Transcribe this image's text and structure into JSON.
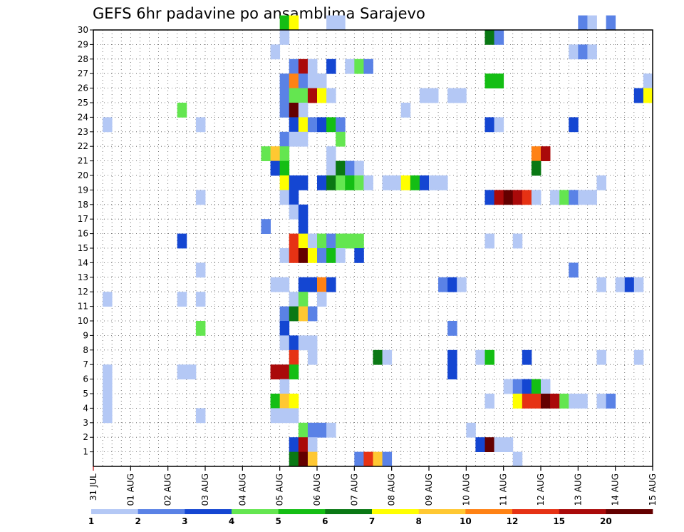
{
  "chart_data": {
    "type": "heatmap",
    "title": "GEFS 6hr padavine po ansamblima Sarajevo",
    "xlabel": "",
    "ylabel": "",
    "x_tick_labels": [
      "31 JUL",
      "01 AUG",
      "02 AUG",
      "03 AUG",
      "04 AUG",
      "05 AUG",
      "06 AUG",
      "07 AUG",
      "08 AUG",
      "09 AUG",
      "10 AUG",
      "11 AUG",
      "12 AUG",
      "13 AUG",
      "14 AUG",
      "15 AUG"
    ],
    "y_tick_labels": [
      "1",
      "2",
      "3",
      "4",
      "5",
      "6",
      "7",
      "8",
      "9",
      "10",
      "11",
      "12",
      "13",
      "14",
      "15",
      "16",
      "17",
      "18",
      "19",
      "20",
      "21",
      "22",
      "23",
      "24",
      "25",
      "26",
      "27",
      "28",
      "29",
      "30"
    ],
    "x_range": [
      0,
      60
    ],
    "y_range": [
      0,
      30
    ],
    "grid": true,
    "legend_position": "bottom",
    "legend_thresholds": [
      "1",
      "2",
      "3",
      "4",
      "5",
      "6",
      "7",
      "8",
      "10",
      "12",
      "15",
      "20"
    ],
    "colors": [
      "#b4c8f5",
      "#5a82e6",
      "#1446d2",
      "#64e650",
      "#14be14",
      "#0a7814",
      "#ffff00",
      "#ffc832",
      "#ff8214",
      "#e63214",
      "#aa0a0a",
      "#640000"
    ],
    "cells": [
      [
        20,
        30,
        4
      ],
      [
        21,
        30,
        6
      ],
      [
        25,
        30,
        0
      ],
      [
        26,
        30,
        0
      ],
      [
        52,
        30,
        1
      ],
      [
        53,
        30,
        0
      ],
      [
        55,
        30,
        1
      ],
      [
        20,
        29,
        0
      ],
      [
        42,
        29,
        5
      ],
      [
        43,
        29,
        1
      ],
      [
        19,
        28,
        0
      ],
      [
        51,
        28,
        0
      ],
      [
        52,
        28,
        1
      ],
      [
        53,
        28,
        0
      ],
      [
        21,
        27,
        1
      ],
      [
        22,
        27,
        10
      ],
      [
        23,
        27,
        0
      ],
      [
        25,
        27,
        2
      ],
      [
        27,
        27,
        0
      ],
      [
        28,
        27,
        3
      ],
      [
        29,
        27,
        1
      ],
      [
        20,
        26,
        1
      ],
      [
        21,
        26,
        8
      ],
      [
        22,
        26,
        1
      ],
      [
        23,
        26,
        0
      ],
      [
        24,
        26,
        0
      ],
      [
        42,
        26,
        4
      ],
      [
        43,
        26,
        4
      ],
      [
        59,
        26,
        0
      ],
      [
        20,
        25,
        1
      ],
      [
        21,
        25,
        3
      ],
      [
        22,
        25,
        3
      ],
      [
        23,
        25,
        10
      ],
      [
        24,
        25,
        6
      ],
      [
        25,
        25,
        0
      ],
      [
        35,
        25,
        0
      ],
      [
        36,
        25,
        0
      ],
      [
        38,
        25,
        0
      ],
      [
        39,
        25,
        0
      ],
      [
        58,
        25,
        2
      ],
      [
        59,
        25,
        6
      ],
      [
        9,
        24,
        3
      ],
      [
        20,
        24,
        1
      ],
      [
        21,
        24,
        11
      ],
      [
        22,
        24,
        0
      ],
      [
        33,
        24,
        0
      ],
      [
        1,
        23,
        0
      ],
      [
        11,
        23,
        0
      ],
      [
        21,
        23,
        2
      ],
      [
        22,
        23,
        6
      ],
      [
        23,
        23,
        1
      ],
      [
        24,
        23,
        2
      ],
      [
        25,
        23,
        4
      ],
      [
        26,
        23,
        1
      ],
      [
        42,
        23,
        2
      ],
      [
        43,
        23,
        0
      ],
      [
        51,
        23,
        2
      ],
      [
        20,
        22,
        1
      ],
      [
        21,
        22,
        0
      ],
      [
        22,
        22,
        0
      ],
      [
        26,
        22,
        3
      ],
      [
        18,
        21,
        3
      ],
      [
        19,
        21,
        7
      ],
      [
        20,
        21,
        3
      ],
      [
        25,
        21,
        0
      ],
      [
        47,
        21,
        8
      ],
      [
        48,
        21,
        10
      ],
      [
        19,
        20,
        2
      ],
      [
        20,
        20,
        4
      ],
      [
        25,
        20,
        0
      ],
      [
        26,
        20,
        5
      ],
      [
        27,
        20,
        1
      ],
      [
        28,
        20,
        0
      ],
      [
        47,
        20,
        5
      ],
      [
        20,
        19,
        6
      ],
      [
        21,
        19,
        2
      ],
      [
        22,
        19,
        2
      ],
      [
        24,
        19,
        2
      ],
      [
        25,
        19,
        5
      ],
      [
        26,
        19,
        3
      ],
      [
        27,
        19,
        4
      ],
      [
        28,
        19,
        3
      ],
      [
        29,
        19,
        0
      ],
      [
        31,
        19,
        0
      ],
      [
        32,
        19,
        0
      ],
      [
        33,
        19,
        6
      ],
      [
        34,
        19,
        4
      ],
      [
        35,
        19,
        2
      ],
      [
        36,
        19,
        0
      ],
      [
        37,
        19,
        0
      ],
      [
        54,
        19,
        0
      ],
      [
        11,
        18,
        0
      ],
      [
        20,
        18,
        0
      ],
      [
        21,
        18,
        2
      ],
      [
        42,
        18,
        2
      ],
      [
        43,
        18,
        10
      ],
      [
        44,
        18,
        11
      ],
      [
        45,
        18,
        10
      ],
      [
        46,
        18,
        9
      ],
      [
        47,
        18,
        0
      ],
      [
        49,
        18,
        0
      ],
      [
        50,
        18,
        3
      ],
      [
        51,
        18,
        1
      ],
      [
        52,
        18,
        0
      ],
      [
        53,
        18,
        0
      ],
      [
        21,
        17,
        0
      ],
      [
        22,
        17,
        2
      ],
      [
        18,
        16,
        1
      ],
      [
        22,
        16,
        2
      ],
      [
        9,
        15,
        2
      ],
      [
        21,
        15,
        9
      ],
      [
        22,
        15,
        6
      ],
      [
        23,
        15,
        0
      ],
      [
        24,
        15,
        3
      ],
      [
        25,
        15,
        1
      ],
      [
        26,
        15,
        3
      ],
      [
        27,
        15,
        3
      ],
      [
        28,
        15,
        3
      ],
      [
        42,
        15,
        0
      ],
      [
        45,
        15,
        0
      ],
      [
        20,
        14,
        0
      ],
      [
        21,
        14,
        9
      ],
      [
        22,
        14,
        11
      ],
      [
        23,
        14,
        6
      ],
      [
        24,
        14,
        1
      ],
      [
        25,
        14,
        4
      ],
      [
        26,
        14,
        0
      ],
      [
        28,
        14,
        2
      ],
      [
        11,
        13,
        0
      ],
      [
        51,
        13,
        1
      ],
      [
        19,
        12,
        0
      ],
      [
        20,
        12,
        0
      ],
      [
        22,
        12,
        2
      ],
      [
        23,
        12,
        2
      ],
      [
        24,
        12,
        8
      ],
      [
        25,
        12,
        2
      ],
      [
        37,
        12,
        1
      ],
      [
        38,
        12,
        2
      ],
      [
        39,
        12,
        0
      ],
      [
        54,
        12,
        0
      ],
      [
        56,
        12,
        0
      ],
      [
        57,
        12,
        2
      ],
      [
        58,
        12,
        0
      ],
      [
        1,
        11,
        0
      ],
      [
        9,
        11,
        0
      ],
      [
        11,
        11,
        0
      ],
      [
        21,
        11,
        0
      ],
      [
        22,
        11,
        3
      ],
      [
        24,
        11,
        0
      ],
      [
        20,
        10,
        1
      ],
      [
        21,
        10,
        5
      ],
      [
        22,
        10,
        7
      ],
      [
        23,
        10,
        1
      ],
      [
        11,
        9,
        3
      ],
      [
        20,
        9,
        2
      ],
      [
        38,
        9,
        1
      ],
      [
        20,
        8,
        0
      ],
      [
        21,
        8,
        2
      ],
      [
        22,
        8,
        0
      ],
      [
        23,
        8,
        0
      ],
      [
        21,
        7,
        9
      ],
      [
        23,
        7,
        0
      ],
      [
        30,
        7,
        5
      ],
      [
        31,
        7,
        0
      ],
      [
        38,
        7,
        2
      ],
      [
        41,
        7,
        0
      ],
      [
        42,
        7,
        4
      ],
      [
        46,
        7,
        2
      ],
      [
        54,
        7,
        0
      ],
      [
        58,
        7,
        0
      ],
      [
        1,
        6,
        0
      ],
      [
        9,
        6,
        0
      ],
      [
        10,
        6,
        0
      ],
      [
        19,
        6,
        10
      ],
      [
        20,
        6,
        10
      ],
      [
        21,
        6,
        4
      ],
      [
        38,
        6,
        2
      ],
      [
        1,
        5,
        0
      ],
      [
        20,
        5,
        0
      ],
      [
        44,
        5,
        0
      ],
      [
        45,
        5,
        1
      ],
      [
        46,
        5,
        2
      ],
      [
        47,
        5,
        4
      ],
      [
        48,
        5,
        0
      ],
      [
        1,
        4,
        0
      ],
      [
        19,
        4,
        4
      ],
      [
        20,
        4,
        7
      ],
      [
        21,
        4,
        6
      ],
      [
        42,
        4,
        0
      ],
      [
        45,
        4,
        6
      ],
      [
        46,
        4,
        9
      ],
      [
        47,
        4,
        9
      ],
      [
        48,
        4,
        11
      ],
      [
        49,
        4,
        10
      ],
      [
        50,
        4,
        3
      ],
      [
        51,
        4,
        0
      ],
      [
        52,
        4,
        0
      ],
      [
        54,
        4,
        0
      ],
      [
        55,
        4,
        1
      ],
      [
        1,
        3,
        0
      ],
      [
        11,
        3,
        0
      ],
      [
        19,
        3,
        0
      ],
      [
        20,
        3,
        0
      ],
      [
        21,
        3,
        0
      ],
      [
        22,
        2,
        3
      ],
      [
        23,
        2,
        1
      ],
      [
        24,
        2,
        1
      ],
      [
        25,
        2,
        0
      ],
      [
        40,
        2,
        0
      ],
      [
        21,
        1,
        2
      ],
      [
        22,
        1,
        10
      ],
      [
        23,
        1,
        0
      ],
      [
        41,
        1,
        2
      ],
      [
        42,
        1,
        11
      ],
      [
        43,
        1,
        0
      ],
      [
        44,
        1,
        0
      ],
      [
        21,
        0,
        5
      ],
      [
        22,
        0,
        11
      ],
      [
        23,
        0,
        7
      ],
      [
        28,
        0,
        1
      ],
      [
        29,
        0,
        9
      ],
      [
        30,
        0,
        7
      ],
      [
        31,
        0,
        1
      ],
      [
        45,
        0,
        0
      ]
    ]
  }
}
